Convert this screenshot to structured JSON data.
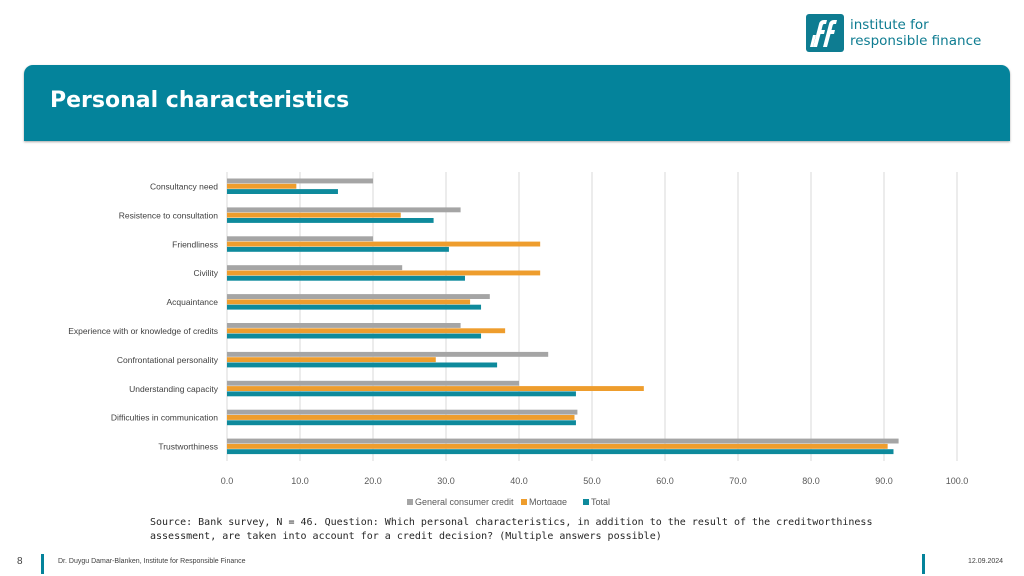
{
  "logo": {
    "line1": "institute for",
    "line2": "responsible finance"
  },
  "header": {
    "title": "Personal characteristics"
  },
  "colors": {
    "accent": "#04839b",
    "general": "#a5a5a5",
    "mortgage": "#ee9d2d",
    "total": "#0e8a9c"
  },
  "chart_data": {
    "type": "bar",
    "orientation": "horizontal",
    "categories": [
      "Consultancy need",
      "Resistence to consultation",
      "Friendliness",
      "Civility",
      "Acquaintance",
      "Experience with or knowledge of credits",
      "Confrontational personality",
      "Understanding capacity",
      "Difficulties in communication",
      "Trustworthiness"
    ],
    "series": [
      {
        "name": "General consumer credit",
        "values": [
          20.0,
          32.0,
          20.0,
          24.0,
          36.0,
          32.0,
          44.0,
          40.0,
          48.0,
          92.0
        ]
      },
      {
        "name": "Mortgage",
        "values": [
          9.5,
          23.8,
          42.9,
          42.9,
          33.3,
          38.1,
          28.6,
          57.1,
          47.6,
          90.5
        ]
      },
      {
        "name": "Total",
        "values": [
          15.2,
          28.3,
          30.4,
          32.6,
          34.8,
          34.8,
          37.0,
          47.8,
          47.8,
          91.3
        ]
      }
    ],
    "xlim": [
      0,
      100
    ],
    "xticks": [
      "0.0",
      "10.0",
      "20.0",
      "30.0",
      "40.0",
      "50.0",
      "60.0",
      "70.0",
      "80.0",
      "90.0",
      "100.0"
    ],
    "grid": true,
    "legend": "bottom"
  },
  "source": "Source: Bank survey, N = 46. Question: Which personal characteristics, in addition to the result of the creditworthiness assessment, are taken into account for a credit decision? (Multiple answers possible)",
  "footer": {
    "page": "8",
    "author": "Dr. Duygu Damar-Blanken, Institute for Responsible Finance",
    "date": "12.09.2024"
  }
}
